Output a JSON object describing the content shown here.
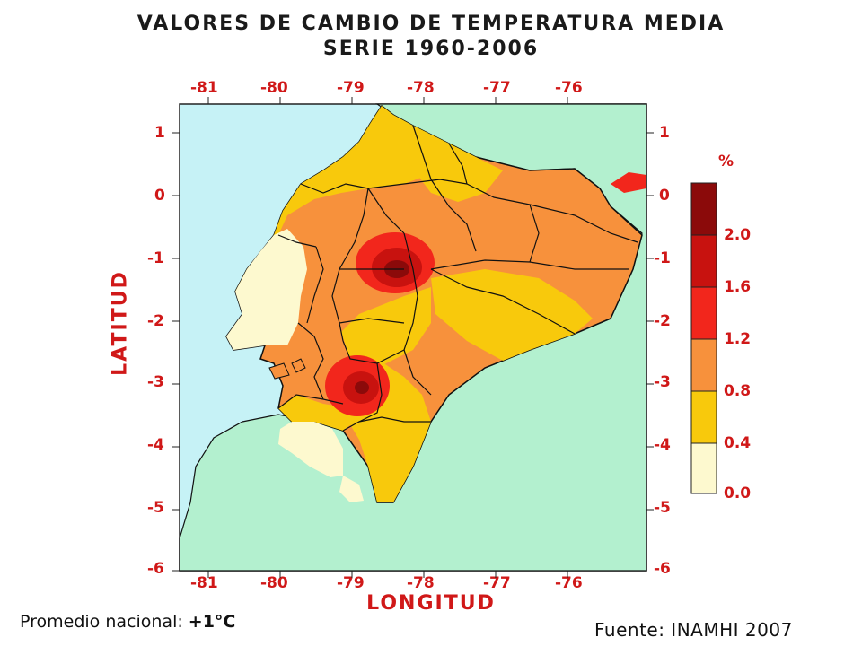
{
  "title": {
    "line1": "VALORES DE CAMBIO DE TEMPERATURA MEDIA",
    "line2": "SERIE 1960-2006"
  },
  "axes": {
    "longitude_label": "LONGITUD",
    "latitude_label": "LATITUD",
    "longitude_ticks": [
      "-81",
      "-80",
      "-79",
      "-78",
      "-77",
      "-76"
    ],
    "latitude_ticks": [
      "1",
      "0",
      "-1",
      "-2",
      "-3",
      "-4",
      "-5",
      "-6"
    ]
  },
  "legend": {
    "unit": "%",
    "labels": [
      "2.0",
      "1.6",
      "1.2",
      "0.8",
      "0.4",
      "0.0"
    ],
    "colors": [
      "#8b0a0a",
      "#c8120f",
      "#f2261c",
      "#f7913c",
      "#f8c90c",
      "#fdf9cf"
    ]
  },
  "colors": {
    "ocean": "#c6f2f6",
    "neighbors": "#b3f0cf",
    "boundary": "#111111"
  },
  "footer": {
    "average_label": "Promedio nacional: ",
    "average_value": "+1°C",
    "source": "Fuente: INAMHI 2007"
  }
}
